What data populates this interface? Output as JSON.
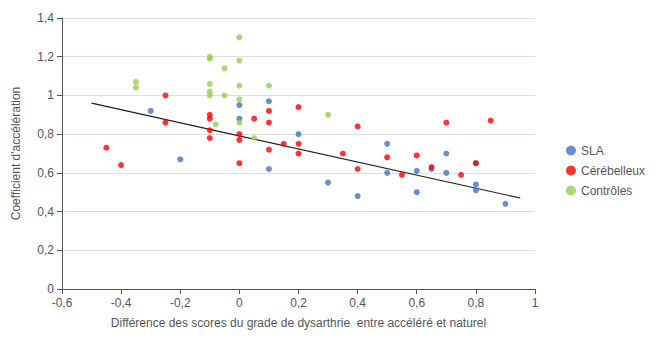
{
  "chart_data": {
    "type": "scatter",
    "xlabel": "Différence des scores du grade de dysarthrie  entre accéléré et naturel",
    "ylabel": "Coefficient d'accélération",
    "series": [
      {
        "name": "SLA",
        "color": "#4472C4",
        "x": [
          -0.3,
          -0.2,
          0.0,
          0.0,
          0.1,
          0.1,
          0.2,
          0.3,
          0.4,
          0.5,
          0.5,
          0.6,
          0.6,
          0.65,
          0.7,
          0.7,
          0.8,
          0.8,
          0.8,
          0.9
        ],
        "values": [
          0.92,
          0.67,
          0.95,
          0.88,
          0.97,
          0.62,
          0.8,
          0.55,
          0.48,
          0.6,
          0.75,
          0.61,
          0.5,
          0.62,
          0.6,
          0.7,
          0.54,
          0.65,
          0.51,
          0.44
        ]
      },
      {
        "name": "Cérébelleux",
        "color": "#FF0000",
        "x": [
          -0.45,
          -0.4,
          -0.25,
          -0.25,
          -0.1,
          -0.1,
          -0.1,
          -0.1,
          0.0,
          0.0,
          0.0,
          0.05,
          0.1,
          0.1,
          0.1,
          0.15,
          0.2,
          0.2,
          0.2,
          0.35,
          0.4,
          0.4,
          0.5,
          0.55,
          0.6,
          0.65,
          0.7,
          0.75,
          0.8,
          0.85
        ],
        "values": [
          0.73,
          0.64,
          1.0,
          0.86,
          0.9,
          0.88,
          0.82,
          0.78,
          0.8,
          0.77,
          0.65,
          0.88,
          0.92,
          0.86,
          0.72,
          0.75,
          0.94,
          0.75,
          0.7,
          0.7,
          0.84,
          0.62,
          0.68,
          0.59,
          0.69,
          0.63,
          0.86,
          0.59,
          0.65,
          0.87
        ]
      },
      {
        "name": "Contrôles",
        "color": "#92D050",
        "x": [
          -0.35,
          -0.35,
          -0.1,
          -0.1,
          -0.1,
          -0.1,
          -0.1,
          -0.08,
          -0.05,
          -0.05,
          0.0,
          0.0,
          0.0,
          0.0,
          0.0,
          0.05,
          0.1,
          0.3
        ],
        "values": [
          1.07,
          1.04,
          1.2,
          1.19,
          1.06,
          1.02,
          1.0,
          0.85,
          1.14,
          1.0,
          1.3,
          1.18,
          1.05,
          0.98,
          0.86,
          0.78,
          1.05,
          0.9
        ]
      }
    ],
    "trendline": {
      "x": [
        -0.5,
        0.95
      ],
      "y": [
        0.96,
        0.47
      ],
      "color": "#1F1F1F"
    },
    "xlim": [
      -0.6,
      1.0
    ],
    "ylim": [
      0.0,
      1.4
    ],
    "xticks": [
      {
        "value": -0.6,
        "label": "-0,6"
      },
      {
        "value": -0.4,
        "label": "-0,4"
      },
      {
        "value": -0.2,
        "label": "-0,2"
      },
      0,
      {
        "value": 0.2,
        "label": "0,2"
      },
      {
        "value": 0.4,
        "label": "0,4"
      },
      {
        "value": 0.6,
        "label": "0,6"
      },
      {
        "value": 0.8,
        "label": "0,8"
      },
      1
    ],
    "yticks": [
      0,
      {
        "value": 0.2,
        "label": "0,2"
      },
      {
        "value": 0.4,
        "label": "0,4"
      },
      {
        "value": 0.6,
        "label": "0,6"
      },
      {
        "value": 0.8,
        "label": "0,8"
      },
      1,
      {
        "value": 1.2,
        "label": "1,2"
      },
      {
        "value": 1.4,
        "label": "1,4"
      }
    ],
    "grid": "y",
    "legend": "right"
  }
}
